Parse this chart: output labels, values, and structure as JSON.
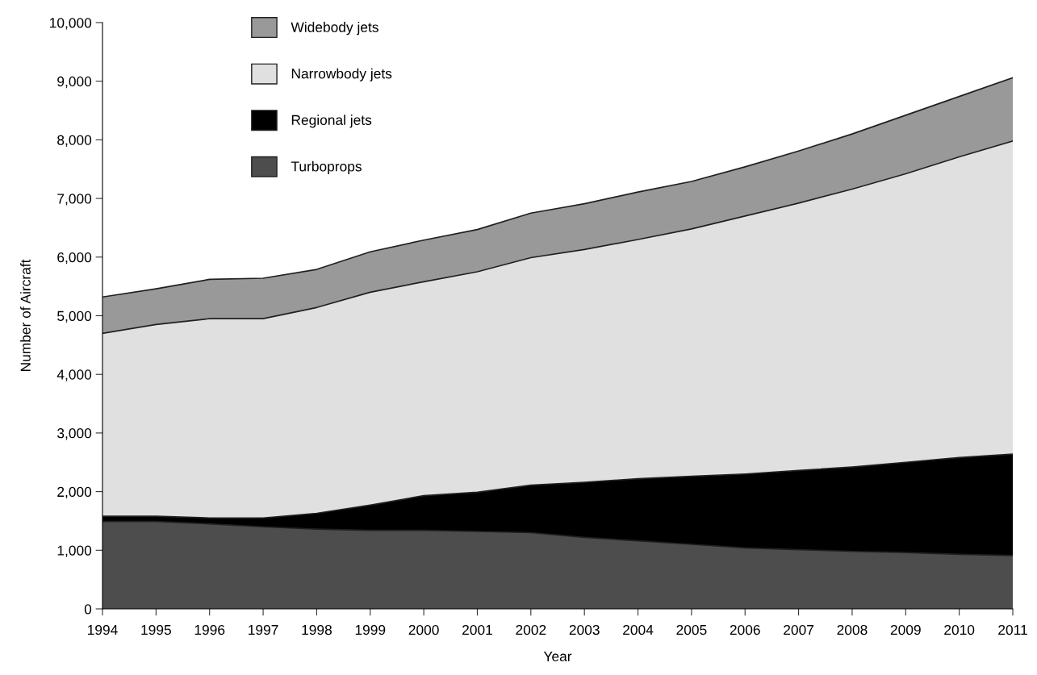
{
  "chart_data": {
    "type": "area",
    "stacked": true,
    "xlabel": "Year",
    "ylabel": "Number of Aircraft",
    "x": [
      1994,
      1995,
      1996,
      1997,
      1998,
      1999,
      2000,
      2001,
      2002,
      2003,
      2004,
      2005,
      2006,
      2007,
      2008,
      2009,
      2010,
      2011
    ],
    "series": [
      {
        "name": "Turboprops",
        "color": "#4d4d4d",
        "values": [
          1490,
          1490,
          1450,
          1400,
          1360,
          1340,
          1340,
          1320,
          1300,
          1220,
          1160,
          1100,
          1040,
          1010,
          980,
          960,
          930,
          910
        ]
      },
      {
        "name": "Regional jets",
        "color": "#000000",
        "values": [
          90,
          90,
          100,
          150,
          270,
          430,
          590,
          670,
          810,
          940,
          1060,
          1160,
          1260,
          1350,
          1440,
          1540,
          1650,
          1730
        ]
      },
      {
        "name": "Narrowbody jets",
        "color": "#e0e0e0",
        "values": [
          3120,
          3270,
          3400,
          3400,
          3510,
          3630,
          3650,
          3760,
          3880,
          3970,
          4080,
          4220,
          4400,
          4560,
          4740,
          4920,
          5130,
          5340
        ]
      },
      {
        "name": "Widebody jets",
        "color": "#999999",
        "values": [
          620,
          610,
          670,
          690,
          650,
          690,
          710,
          720,
          760,
          780,
          810,
          810,
          840,
          890,
          940,
          1000,
          1030,
          1080
        ]
      }
    ],
    "xlim": [
      1994,
      2011
    ],
    "xticks": [
      1994,
      1995,
      1996,
      1997,
      1998,
      1999,
      2000,
      2001,
      2002,
      2003,
      2004,
      2005,
      2006,
      2007,
      2008,
      2009,
      2010,
      2011
    ],
    "ylim": [
      0,
      10000
    ],
    "yticks": [
      {
        "value": 0,
        "label": "0"
      },
      {
        "value": 1000,
        "label": "1,000"
      },
      {
        "value": 2000,
        "label": "2,000"
      },
      {
        "value": 3000,
        "label": "3,000"
      },
      {
        "value": 4000,
        "label": "4,000"
      },
      {
        "value": 5000,
        "label": "5,000"
      },
      {
        "value": 6000,
        "label": "6,000"
      },
      {
        "value": 7000,
        "label": "7,000"
      },
      {
        "value": 8000,
        "label": "8,000"
      },
      {
        "value": 9000,
        "label": "9,000"
      },
      {
        "value": 10000,
        "label": "10,000"
      }
    ],
    "grid": false,
    "legend": "top left"
  }
}
